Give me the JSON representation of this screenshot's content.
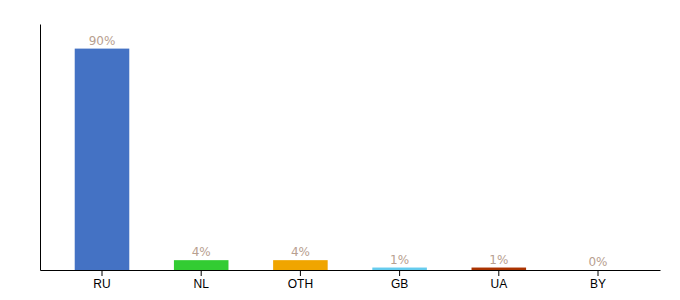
{
  "chart_data": {
    "type": "bar",
    "categories": [
      "RU",
      "NL",
      "OTH",
      "GB",
      "UA",
      "BY"
    ],
    "values": [
      90,
      4,
      4,
      1,
      1,
      0
    ],
    "value_labels": [
      "90%",
      "4%",
      "4%",
      "1%",
      "1%",
      "0%"
    ],
    "colors": [
      "#4472c4",
      "#33cc33",
      "#f0a500",
      "#66ccee",
      "#aa3300",
      "#cccccc"
    ],
    "ylim": [
      0,
      100
    ],
    "data_labels": true,
    "tick_labels": "x",
    "grid": false
  }
}
